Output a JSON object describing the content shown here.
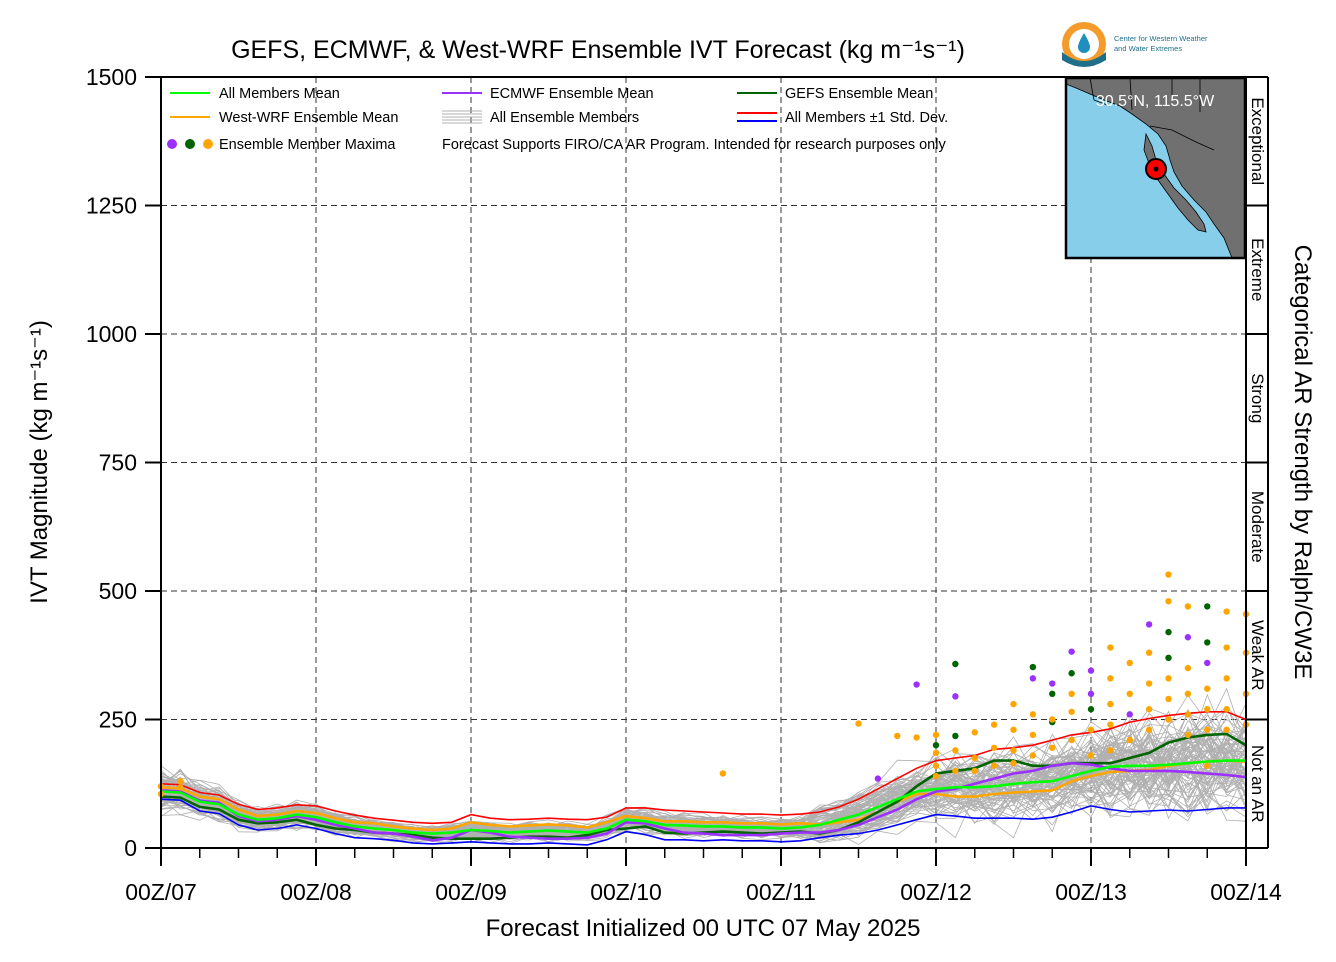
{
  "chart_data": {
    "type": "line",
    "title": "GEFS, ECMWF, & West-WRF Ensemble IVT Forecast (kg m⁻¹s⁻¹)",
    "ylabel": "IVT Magnitude (kg m⁻¹s⁻¹)",
    "xlabel": "Forecast Initialized 00 UTC 07 May 2025",
    "right_label": "Categorical AR Strength by Ralph/CW3E",
    "ylim": [
      0,
      1500
    ],
    "xlim": [
      0,
      168
    ],
    "grid": true,
    "legend_position": "top-left",
    "x_ticks": [
      {
        "x": 0,
        "label": "00Z/07"
      },
      {
        "x": 24,
        "label": "00Z/08"
      },
      {
        "x": 48,
        "label": "00Z/09"
      },
      {
        "x": 72,
        "label": "00Z/10"
      },
      {
        "x": 96,
        "label": "00Z/11"
      },
      {
        "x": 120,
        "label": "00Z/12"
      },
      {
        "x": 144,
        "label": "00Z/13"
      },
      {
        "x": 168,
        "label": "00Z/14"
      }
    ],
    "y_ticks": [
      0,
      250,
      500,
      750,
      1000,
      1250,
      1500
    ],
    "categories": [
      {
        "label": "Not an AR",
        "from": 0,
        "to": 250
      },
      {
        "label": "Weak AR",
        "from": 250,
        "to": 500
      },
      {
        "label": "Moderate",
        "from": 500,
        "to": 750
      },
      {
        "label": "Strong",
        "from": 750,
        "to": 1000
      },
      {
        "label": "Extreme",
        "from": 1000,
        "to": 1250
      },
      {
        "label": "Exceptional",
        "from": 1250,
        "to": 1500
      }
    ],
    "legend": {
      "all_mean": "All Members Mean",
      "ecmwf_mean": "ECMWF Ensemble Mean",
      "gefs_mean": "GEFS Ensemble Mean",
      "wrf_mean": "West-WRF Ensemble Mean",
      "members": "All Ensemble Members",
      "std": "All Members ±1 Std. Dev.",
      "maxima": "Ensemble Member Maxima",
      "note": "Forecast Supports FIRO/CA AR Program. Intended for research purposes only"
    },
    "colors": {
      "all_mean": "#00ff00",
      "ecmwf_mean": "#9b30ff",
      "gefs_mean": "#006400",
      "wrf_mean": "#ffa500",
      "members": "#b0b0b0",
      "std_upper": "#ff0000",
      "std_lower": "#0000ff"
    },
    "x": [
      0,
      3,
      6,
      9,
      12,
      15,
      18,
      21,
      24,
      27,
      30,
      33,
      36,
      39,
      42,
      45,
      48,
      51,
      54,
      57,
      60,
      63,
      66,
      69,
      72,
      75,
      78,
      81,
      84,
      87,
      90,
      93,
      96,
      99,
      102,
      105,
      108,
      111,
      114,
      117,
      120,
      123,
      126,
      129,
      132,
      135,
      138,
      141,
      144,
      147,
      150,
      153,
      156,
      159,
      162,
      165,
      168
    ],
    "series": [
      {
        "name": "All Members Mean",
        "key": "all_mean",
        "values": [
          110,
          108,
          90,
          85,
          65,
          55,
          58,
          65,
          60,
          50,
          42,
          38,
          35,
          30,
          28,
          30,
          35,
          33,
          30,
          32,
          34,
          32,
          30,
          38,
          55,
          52,
          45,
          44,
          42,
          42,
          40,
          40,
          38,
          40,
          45,
          55,
          65,
          80,
          95,
          110,
          115,
          118,
          118,
          120,
          125,
          128,
          130,
          140,
          150,
          158,
          160,
          160,
          162,
          165,
          168,
          170,
          170
        ]
      },
      {
        "name": "ECMWF Ensemble Mean",
        "key": "ecmwf_mean",
        "values": [
          112,
          110,
          92,
          88,
          62,
          52,
          55,
          62,
          55,
          45,
          38,
          30,
          28,
          22,
          15,
          20,
          35,
          30,
          22,
          20,
          18,
          18,
          20,
          28,
          50,
          48,
          38,
          30,
          28,
          25,
          25,
          25,
          28,
          30,
          30,
          35,
          45,
          60,
          75,
          95,
          110,
          115,
          125,
          135,
          145,
          150,
          160,
          165,
          162,
          155,
          150,
          150,
          150,
          148,
          145,
          142,
          138
        ]
      },
      {
        "name": "GEFS Ensemble Mean",
        "key": "gefs_mean",
        "values": [
          100,
          98,
          80,
          75,
          55,
          48,
          50,
          55,
          45,
          38,
          35,
          30,
          28,
          25,
          20,
          18,
          18,
          18,
          20,
          22,
          22,
          20,
          25,
          35,
          38,
          42,
          30,
          28,
          30,
          32,
          30,
          28,
          30,
          32,
          28,
          35,
          50,
          70,
          90,
          120,
          145,
          150,
          155,
          170,
          170,
          160,
          160,
          165,
          165,
          165,
          175,
          185,
          205,
          215,
          220,
          222,
          200
        ]
      },
      {
        "name": "West-WRF Ensemble Mean",
        "key": "wrf_mean",
        "values": [
          118,
          116,
          100,
          95,
          75,
          62,
          65,
          72,
          68,
          58,
          50,
          48,
          42,
          38,
          35,
          38,
          50,
          45,
          42,
          44,
          46,
          44,
          40,
          50,
          62,
          58,
          52,
          52,
          50,
          50,
          48,
          48,
          46,
          48,
          46,
          50,
          55,
          70,
          90,
          105,
          105,
          100,
          100,
          105,
          108,
          110,
          112,
          130,
          140,
          148,
          150,
          152,
          160,
          165,
          168,
          170,
          168
        ]
      },
      {
        "name": "All Members ±1 Std. Dev.",
        "key": "std_upper",
        "values": [
          125,
          123,
          108,
          103,
          85,
          75,
          78,
          84,
          82,
          72,
          64,
          58,
          54,
          50,
          48,
          50,
          65,
          58,
          55,
          56,
          58,
          56,
          55,
          60,
          78,
          78,
          74,
          72,
          70,
          68,
          66,
          66,
          64,
          66,
          70,
          80,
          95,
          115,
          135,
          155,
          170,
          175,
          180,
          192,
          195,
          200,
          210,
          220,
          225,
          232,
          245,
          252,
          258,
          262,
          265,
          265,
          250
        ]
      },
      {
        "name": "All Members ±1 Std. Dev. (lower)",
        "key": "std_lower",
        "values": [
          95,
          93,
          72,
          67,
          45,
          35,
          38,
          45,
          38,
          28,
          20,
          18,
          15,
          10,
          8,
          10,
          12,
          10,
          8,
          8,
          10,
          8,
          6,
          16,
          32,
          26,
          16,
          16,
          14,
          16,
          14,
          14,
          12,
          14,
          20,
          25,
          28,
          35,
          45,
          55,
          65,
          62,
          58,
          58,
          58,
          56,
          60,
          70,
          82,
          75,
          70,
          72,
          74,
          72,
          75,
          78,
          78
        ]
      }
    ],
    "maxima": [
      {
        "x": 0,
        "y": 120,
        "model": "wrf"
      },
      {
        "x": 3,
        "y": 130,
        "model": "wrf"
      },
      {
        "x": 3,
        "y": 118,
        "model": "wrf"
      },
      {
        "x": 0,
        "y": 105,
        "model": "wrf"
      },
      {
        "x": 87,
        "y": 145,
        "model": "wrf"
      },
      {
        "x": 108,
        "y": 242,
        "model": "wrf"
      },
      {
        "x": 111,
        "y": 135,
        "model": "ecmwf"
      },
      {
        "x": 114,
        "y": 218,
        "model": "wrf"
      },
      {
        "x": 117,
        "y": 318,
        "model": "ecmwf"
      },
      {
        "x": 117,
        "y": 215,
        "model": "wrf"
      },
      {
        "x": 120,
        "y": 220,
        "model": "wrf"
      },
      {
        "x": 120,
        "y": 200,
        "model": "gefs"
      },
      {
        "x": 120,
        "y": 185,
        "model": "wrf"
      },
      {
        "x": 120,
        "y": 160,
        "model": "wrf"
      },
      {
        "x": 120,
        "y": 140,
        "model": "wrf"
      },
      {
        "x": 123,
        "y": 358,
        "model": "gefs"
      },
      {
        "x": 123,
        "y": 295,
        "model": "ecmwf"
      },
      {
        "x": 123,
        "y": 218,
        "model": "gefs"
      },
      {
        "x": 123,
        "y": 190,
        "model": "wrf"
      },
      {
        "x": 123,
        "y": 150,
        "model": "wrf"
      },
      {
        "x": 126,
        "y": 225,
        "model": "wrf"
      },
      {
        "x": 126,
        "y": 175,
        "model": "wrf"
      },
      {
        "x": 126,
        "y": 150,
        "model": "wrf"
      },
      {
        "x": 129,
        "y": 240,
        "model": "wrf"
      },
      {
        "x": 129,
        "y": 195,
        "model": "wrf"
      },
      {
        "x": 129,
        "y": 160,
        "model": "wrf"
      },
      {
        "x": 132,
        "y": 280,
        "model": "wrf"
      },
      {
        "x": 132,
        "y": 230,
        "model": "wrf"
      },
      {
        "x": 132,
        "y": 190,
        "model": "wrf"
      },
      {
        "x": 132,
        "y": 165,
        "model": "wrf"
      },
      {
        "x": 135,
        "y": 352,
        "model": "gefs"
      },
      {
        "x": 135,
        "y": 330,
        "model": "ecmwf"
      },
      {
        "x": 135,
        "y": 260,
        "model": "wrf"
      },
      {
        "x": 135,
        "y": 220,
        "model": "wrf"
      },
      {
        "x": 135,
        "y": 180,
        "model": "wrf"
      },
      {
        "x": 138,
        "y": 300,
        "model": "gefs"
      },
      {
        "x": 138,
        "y": 320,
        "model": "ecmwf"
      },
      {
        "x": 138,
        "y": 245,
        "model": "gefs"
      },
      {
        "x": 138,
        "y": 250,
        "model": "wrf"
      },
      {
        "x": 138,
        "y": 195,
        "model": "wrf"
      },
      {
        "x": 141,
        "y": 382,
        "model": "ecmwf"
      },
      {
        "x": 141,
        "y": 340,
        "model": "gefs"
      },
      {
        "x": 141,
        "y": 300,
        "model": "wrf"
      },
      {
        "x": 141,
        "y": 265,
        "model": "wrf"
      },
      {
        "x": 141,
        "y": 210,
        "model": "wrf"
      },
      {
        "x": 144,
        "y": 345,
        "model": "ecmwf"
      },
      {
        "x": 144,
        "y": 300,
        "model": "ecmwf"
      },
      {
        "x": 144,
        "y": 270,
        "model": "gefs"
      },
      {
        "x": 144,
        "y": 230,
        "model": "wrf"
      },
      {
        "x": 144,
        "y": 180,
        "model": "wrf"
      },
      {
        "x": 147,
        "y": 390,
        "model": "wrf"
      },
      {
        "x": 147,
        "y": 330,
        "model": "wrf"
      },
      {
        "x": 147,
        "y": 280,
        "model": "wrf"
      },
      {
        "x": 147,
        "y": 240,
        "model": "wrf"
      },
      {
        "x": 147,
        "y": 190,
        "model": "wrf"
      },
      {
        "x": 150,
        "y": 360,
        "model": "wrf"
      },
      {
        "x": 150,
        "y": 300,
        "model": "wrf"
      },
      {
        "x": 150,
        "y": 260,
        "model": "ecmwf"
      },
      {
        "x": 150,
        "y": 210,
        "model": "wrf"
      },
      {
        "x": 153,
        "y": 435,
        "model": "ecmwf"
      },
      {
        "x": 153,
        "y": 380,
        "model": "wrf"
      },
      {
        "x": 153,
        "y": 320,
        "model": "wrf"
      },
      {
        "x": 153,
        "y": 270,
        "model": "wrf"
      },
      {
        "x": 153,
        "y": 230,
        "model": "wrf"
      },
      {
        "x": 156,
        "y": 532,
        "model": "wrf"
      },
      {
        "x": 156,
        "y": 480,
        "model": "wrf"
      },
      {
        "x": 156,
        "y": 420,
        "model": "gefs"
      },
      {
        "x": 156,
        "y": 370,
        "model": "gefs"
      },
      {
        "x": 156,
        "y": 330,
        "model": "wrf"
      },
      {
        "x": 156,
        "y": 290,
        "model": "wrf"
      },
      {
        "x": 156,
        "y": 250,
        "model": "wrf"
      },
      {
        "x": 159,
        "y": 470,
        "model": "wrf"
      },
      {
        "x": 159,
        "y": 410,
        "model": "ecmwf"
      },
      {
        "x": 159,
        "y": 350,
        "model": "wrf"
      },
      {
        "x": 159,
        "y": 300,
        "model": "wrf"
      },
      {
        "x": 159,
        "y": 260,
        "model": "wrf"
      },
      {
        "x": 159,
        "y": 220,
        "model": "wrf"
      },
      {
        "x": 162,
        "y": 470,
        "model": "gefs"
      },
      {
        "x": 162,
        "y": 400,
        "model": "gefs"
      },
      {
        "x": 162,
        "y": 360,
        "model": "ecmwf"
      },
      {
        "x": 162,
        "y": 310,
        "model": "wrf"
      },
      {
        "x": 162,
        "y": 270,
        "model": "wrf"
      },
      {
        "x": 162,
        "y": 230,
        "model": "wrf"
      },
      {
        "x": 162,
        "y": 160,
        "model": "wrf"
      },
      {
        "x": 165,
        "y": 460,
        "model": "wrf"
      },
      {
        "x": 165,
        "y": 390,
        "model": "wrf"
      },
      {
        "x": 165,
        "y": 330,
        "model": "wrf"
      },
      {
        "x": 165,
        "y": 270,
        "model": "wrf"
      },
      {
        "x": 165,
        "y": 230,
        "model": "wrf"
      },
      {
        "x": 168,
        "y": 455,
        "model": "wrf"
      },
      {
        "x": 168,
        "y": 380,
        "model": "wrf"
      },
      {
        "x": 168,
        "y": 300,
        "model": "wrf"
      },
      {
        "x": 168,
        "y": 240,
        "model": "wrf"
      }
    ]
  },
  "inset_map": {
    "label": "30.5°N, 115.5°W",
    "colors": {
      "ocean": "#87ceeb",
      "land": "#707070"
    }
  },
  "logo": {
    "line1": "Center for Western Weather",
    "line2": "and Water Extremes"
  }
}
